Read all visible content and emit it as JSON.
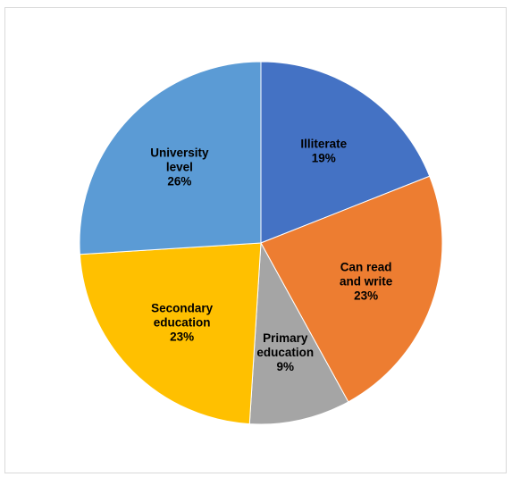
{
  "chart_data": {
    "type": "pie",
    "title": "",
    "slices": [
      {
        "label_lines": [
          "Illiterate"
        ],
        "percent_label": "19%",
        "value": 19,
        "color": "#4472c4"
      },
      {
        "label_lines": [
          "Can read",
          "and write"
        ],
        "percent_label": "23%",
        "value": 23,
        "color": "#ed7d31"
      },
      {
        "label_lines": [
          "Primary",
          "education"
        ],
        "percent_label": "9%",
        "value": 9,
        "color": "#a5a5a5"
      },
      {
        "label_lines": [
          "Secondary",
          "education"
        ],
        "percent_label": "23%",
        "value": 23,
        "color": "#ffc000"
      },
      {
        "label_lines": [
          "University",
          "level"
        ],
        "percent_label": "26%",
        "value": 26,
        "color": "#5b9bd5"
      }
    ],
    "legend": "none",
    "start": "top, clockwise"
  }
}
